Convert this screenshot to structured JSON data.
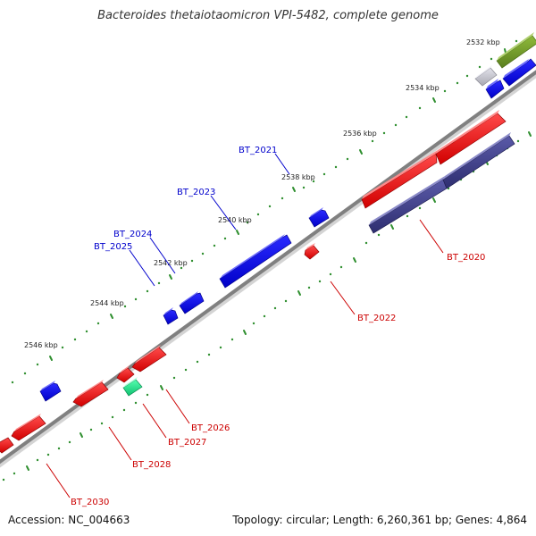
{
  "title": "Bacteroides thetaiotaomicron VPI-5482, complete genome",
  "accession": "Accession: NC_004663",
  "summary": "Topology: circular; Length: 6,260,361 bp; Genes: 4,864",
  "colors": {
    "backbone": "#808080",
    "tick": "#2f8f2f",
    "forward_gene": "#0000ee",
    "reverse_gene": "#ee0000",
    "forward_label": "#0000cc",
    "reverse_label": "#cc0000",
    "olive_feature": "#6f9a2a",
    "gray_feature": "#c8c8d0",
    "navy_feature": "#3d3d8a",
    "mint_feature": "#22e08f"
  },
  "scale_labels": [
    "2532 kbp",
    "2534 kbp",
    "2536 kbp",
    "2538 kbp",
    "2540 kbp",
    "2542 kbp",
    "2544 kbp",
    "2546 kbp"
  ],
  "genes": [
    {
      "name": "BT_2021",
      "strand": "forward",
      "labeled": true
    },
    {
      "name": "BT_2023",
      "strand": "forward",
      "labeled": true
    },
    {
      "name": "BT_2024",
      "strand": "forward",
      "labeled": true
    },
    {
      "name": "BT_2025",
      "strand": "forward",
      "labeled": true
    },
    {
      "name": "BT_2020",
      "strand": "reverse",
      "labeled": true
    },
    {
      "name": "BT_2022",
      "strand": "reverse",
      "labeled": true
    },
    {
      "name": "BT_2026",
      "strand": "reverse",
      "labeled": true
    },
    {
      "name": "BT_2027",
      "strand": "reverse",
      "labeled": true
    },
    {
      "name": "BT_2028",
      "strand": "reverse",
      "labeled": true
    },
    {
      "name": "BT_2030",
      "strand": "reverse",
      "labeled": true
    }
  ]
}
